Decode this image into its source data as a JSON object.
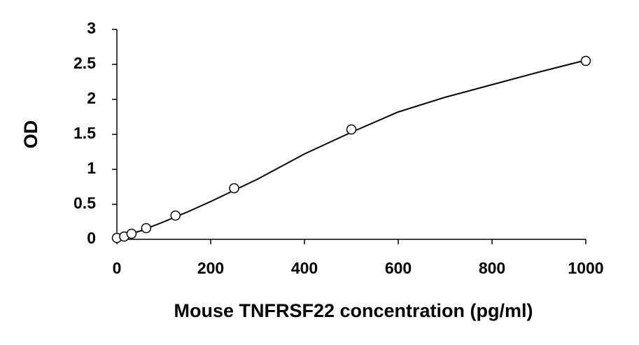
{
  "chart_data": {
    "type": "scatter",
    "x_label": "Mouse TNFRSF22 concentration (pg/ml)",
    "y_label": "OD",
    "xlim": [
      0,
      1000
    ],
    "xticks": [
      0,
      200,
      400,
      600,
      800,
      1000
    ],
    "ylim": [
      0,
      3
    ],
    "yticks": [
      0,
      0.5,
      1,
      1.5,
      2,
      2.5,
      3
    ],
    "series": [
      {
        "color": "#000000",
        "marker": "circle",
        "x": [
          0,
          15.6,
          31.25,
          62.5,
          125,
          250,
          500,
          1000
        ],
        "values": [
          0.02,
          0.04,
          0.08,
          0.16,
          0.34,
          0.73,
          1.57,
          2.55
        ]
      },
      {
        "color": "#000000",
        "marker": "line",
        "x": [
          0,
          50,
          100,
          150,
          200,
          250,
          300,
          400,
          500,
          600,
          700,
          800,
          900,
          1000
        ],
        "values": [
          0.02,
          0.12,
          0.25,
          0.39,
          0.54,
          0.7,
          0.86,
          1.22,
          1.53,
          1.82,
          2.03,
          2.21,
          2.39,
          2.56
        ]
      }
    ]
  }
}
